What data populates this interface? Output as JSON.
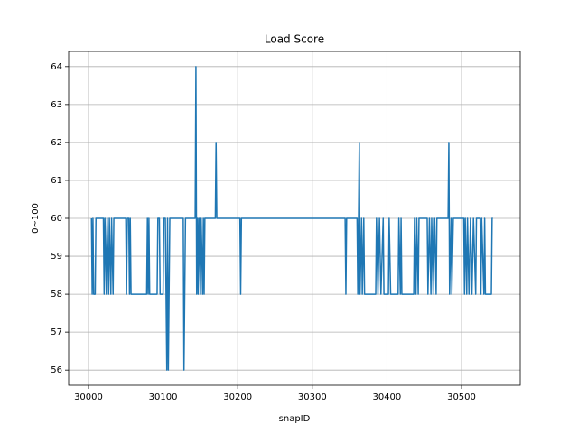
{
  "chart_data": {
    "type": "line",
    "title": "Load Score",
    "x_label": "snapID",
    "y_label": "0~100",
    "xlim": [
      29973.4,
      30578.7
    ],
    "ylim": [
      55.6,
      64.4
    ],
    "xticks": [
      30000,
      30100,
      30200,
      30300,
      30400,
      30500
    ],
    "yticks": [
      56,
      57,
      58,
      59,
      60,
      61,
      62,
      63,
      64
    ],
    "grid": true,
    "series": [
      {
        "name": "Load Score",
        "color": "#1f77b4",
        "x": [
          30004,
          30005,
          30006,
          30007,
          30009,
          30010,
          30020,
          30021,
          30022,
          30024,
          30025,
          30027,
          30028,
          30030,
          30031,
          30033,
          30034,
          30050,
          30051,
          30052,
          30054,
          30055,
          30056,
          30057,
          30078,
          30079,
          30080,
          30081,
          30082,
          30092,
          30093,
          30095,
          30096,
          30100,
          30101,
          30103,
          30104,
          30105,
          30106,
          30107,
          30108,
          30109,
          30127,
          30128,
          30129,
          30130,
          30143,
          30144,
          30145,
          30146,
          30147,
          30148,
          30150,
          30151,
          30153,
          30154,
          30155,
          30156,
          30170,
          30171,
          30172,
          30203,
          30204,
          30205,
          30344,
          30345,
          30346,
          30360,
          30361,
          30362,
          30363,
          30364,
          30366,
          30367,
          30369,
          30370,
          30385,
          30386,
          30388,
          30390,
          30392,
          30395,
          30396,
          30402,
          30403,
          30405,
          30415,
          30416,
          30418,
          30419,
          30420,
          30436,
          30437,
          30439,
          30440,
          30442,
          30443,
          30454,
          30455,
          30457,
          30459,
          30460,
          30462,
          30464,
          30466,
          30467,
          30482,
          30483,
          30484,
          30486,
          30487,
          30489,
          30503,
          30504,
          30505,
          30507,
          30508,
          30510,
          30512,
          30514,
          30516,
          30519,
          30520,
          30525,
          30526,
          30527,
          30530,
          30531,
          30532,
          30540,
          30541,
          30542
        ],
        "values": [
          60,
          58,
          60,
          58,
          58,
          60,
          60,
          58,
          60,
          58,
          60,
          58,
          60,
          58,
          60,
          58,
          60,
          60,
          58,
          60,
          60,
          58,
          60,
          58,
          58,
          60,
          58,
          60,
          58,
          58,
          60,
          60,
          58,
          58,
          60,
          60,
          58,
          56,
          60,
          56,
          58,
          60,
          60,
          56,
          58,
          60,
          60,
          64,
          58,
          60,
          58,
          60,
          58,
          60,
          58,
          60,
          58,
          60,
          60,
          62,
          60,
          60,
          58,
          60,
          60,
          58,
          60,
          60,
          58,
          60,
          62,
          58,
          60,
          58,
          60,
          58,
          58,
          60,
          58,
          60,
          58,
          60,
          58,
          58,
          60,
          58,
          58,
          60,
          58,
          60,
          58,
          58,
          60,
          58,
          60,
          58,
          60,
          60,
          58,
          60,
          58,
          60,
          58,
          60,
          58,
          60,
          60,
          62,
          58,
          60,
          58,
          60,
          60,
          58,
          60,
          58,
          60,
          58,
          60,
          58,
          60,
          58,
          60,
          60,
          58,
          60,
          58,
          60,
          58,
          58,
          60,
          60
        ]
      }
    ]
  }
}
